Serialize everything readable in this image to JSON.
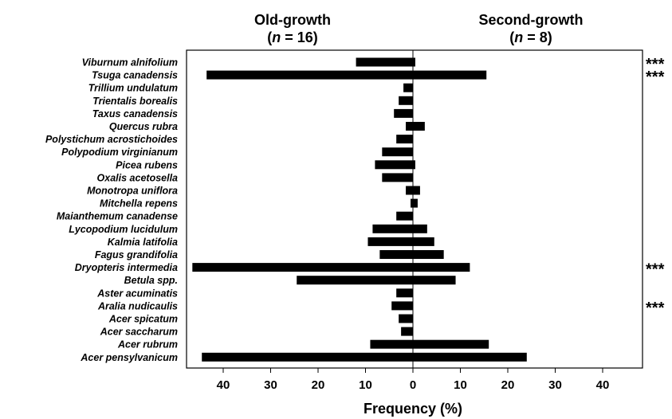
{
  "chart_data": {
    "type": "bar",
    "orientation": "horizontal-diverging",
    "panels": {
      "left": {
        "title_line1": "Old-growth",
        "title_n_prefix": "(",
        "title_n_italic": "n",
        "title_n_suffix": " = 16)"
      },
      "right": {
        "title_line1": "Second-growth",
        "title_n_prefix": "(",
        "title_n_italic": "n",
        "title_n_suffix": " = 8)"
      }
    },
    "xlabel": "Frequency (%)",
    "xlim": [
      -48,
      48
    ],
    "xticks": [
      -40,
      -30,
      -20,
      -10,
      0,
      10,
      20,
      30,
      40
    ],
    "xtick_labels": [
      "40",
      "30",
      "20",
      "10",
      "0",
      "10",
      "20",
      "30",
      "40"
    ],
    "significance_marker": "***",
    "categories": [
      "Viburnum alnifolium",
      "Tsuga canadensis",
      "Trillium undulatum",
      "Trientalis borealis",
      "Taxus canadensis",
      "Quercus rubra",
      "Polystichum acrostichoides",
      "Polypodium virginianum",
      "Picea rubens",
      "Oxalis acetosella",
      "Monotropa uniflora",
      "Mitchella repens",
      "Maianthemum canadense",
      "Lycopodium lucidulum",
      "Kalmia latifolia",
      "Fagus grandifolia",
      "Dryopteris intermedia",
      "Betula spp.",
      "Aster acuminatis",
      "Aralia nudicaulis",
      "Acer spicatum",
      "Acer saccharum",
      "Acer rubrum",
      "Acer pensylvanicum"
    ],
    "series": [
      {
        "name": "Old-growth",
        "values": [
          12,
          43.5,
          2,
          3,
          4,
          1.5,
          3.5,
          6.5,
          8,
          6.5,
          1.5,
          0.5,
          3.5,
          8.5,
          9.5,
          7,
          46.5,
          24.5,
          3.5,
          4.5,
          3,
          2.5,
          9,
          44.5
        ]
      },
      {
        "name": "Second-growth",
        "values": [
          0.5,
          15.5,
          0,
          0,
          0,
          2.5,
          0,
          0,
          0.5,
          0,
          1.5,
          1,
          0,
          3,
          4.5,
          6.5,
          12,
          9,
          0,
          0,
          0,
          0,
          16,
          24
        ]
      }
    ],
    "significant": [
      true,
      true,
      false,
      false,
      false,
      false,
      false,
      false,
      false,
      false,
      false,
      false,
      false,
      false,
      false,
      false,
      true,
      false,
      false,
      true,
      false,
      false,
      false,
      false
    ],
    "colors": {
      "bar": "#000000",
      "axis": "#000000"
    }
  }
}
